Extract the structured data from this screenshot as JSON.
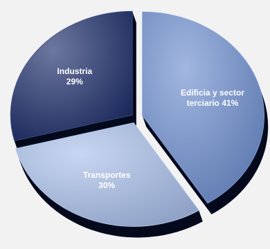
{
  "chart_data": {
    "type": "pie",
    "style": "3d-exploded",
    "slices": [
      {
        "name": "Edificia y sector terciario",
        "value": 41,
        "label_lines": [
          "Edificia y sector",
          "terciario 41%"
        ],
        "color": "#6e8fcf"
      },
      {
        "name": "Transportes",
        "value": 30,
        "label_lines": [
          "Transportes",
          "30%"
        ],
        "color": "#a9c0ea"
      },
      {
        "name": "Industria",
        "value": 29,
        "label_lines": [
          "Industria",
          "29%"
        ],
        "color": "#1e2f6b"
      }
    ],
    "legend": "none",
    "grid": false
  },
  "colors": {
    "background": "#f2f2f3",
    "shadow": "#050a1c",
    "label_text": "#ffffff"
  }
}
